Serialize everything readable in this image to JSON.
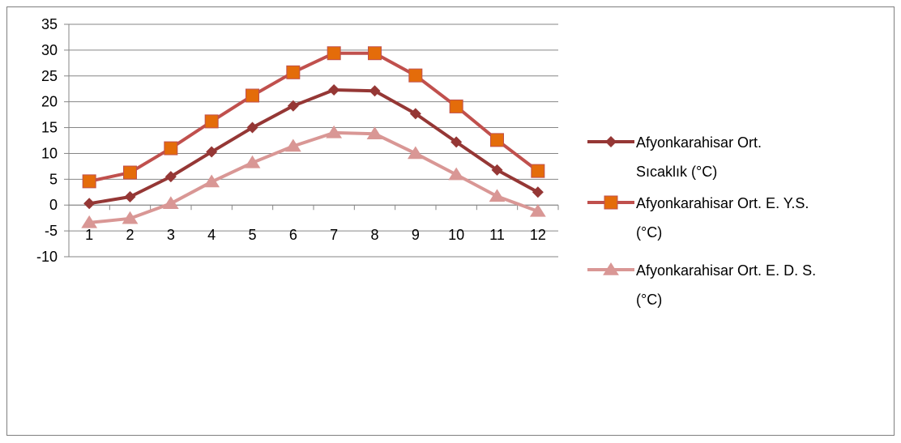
{
  "chart_data": {
    "type": "line",
    "title": "",
    "xlabel": "",
    "ylabel": "",
    "categories": [
      "1",
      "2",
      "3",
      "4",
      "5",
      "6",
      "7",
      "8",
      "9",
      "10",
      "11",
      "12"
    ],
    "ylim": [
      -10,
      35
    ],
    "y_ticks": [
      "35",
      "30",
      "25",
      "20",
      "15",
      "10",
      "5",
      "0",
      "-5",
      "-10"
    ],
    "grid": "horizontal",
    "legend_position": "right",
    "series": [
      {
        "name": "Afyonkarahisar Ort. Sıcaklık (°C)",
        "legend_lines": [
          "Afyonkarahisar Ort.",
          "Sıcaklık (°C)"
        ],
        "color": "#953735",
        "marker": "diamond",
        "values": [
          0.3,
          1.6,
          5.5,
          10.3,
          15.0,
          19.2,
          22.3,
          22.1,
          17.7,
          12.2,
          6.8,
          2.5
        ]
      },
      {
        "name": "Afyonkarahisar Ort. E. Y.S. (°C)",
        "legend_lines": [
          "Afyonkarahisar Ort. E. Y.S.",
          "(°C)"
        ],
        "color": "#c0504d",
        "marker_color": "#e46c0a",
        "marker": "square",
        "values": [
          4.6,
          6.3,
          11.0,
          16.2,
          21.2,
          25.7,
          29.4,
          29.4,
          25.1,
          19.1,
          12.6,
          6.6
        ]
      },
      {
        "name": "Afyonkarahisar Ort. E. D. S. (°C)",
        "legend_lines": [
          "Afyonkarahisar Ort. E. D. S.",
          "(°C)"
        ],
        "color": "#d99795",
        "marker": "triangle",
        "values": [
          -3.4,
          -2.6,
          0.3,
          4.5,
          8.2,
          11.4,
          14.0,
          13.8,
          10.0,
          5.9,
          1.7,
          -1.2
        ]
      }
    ]
  }
}
